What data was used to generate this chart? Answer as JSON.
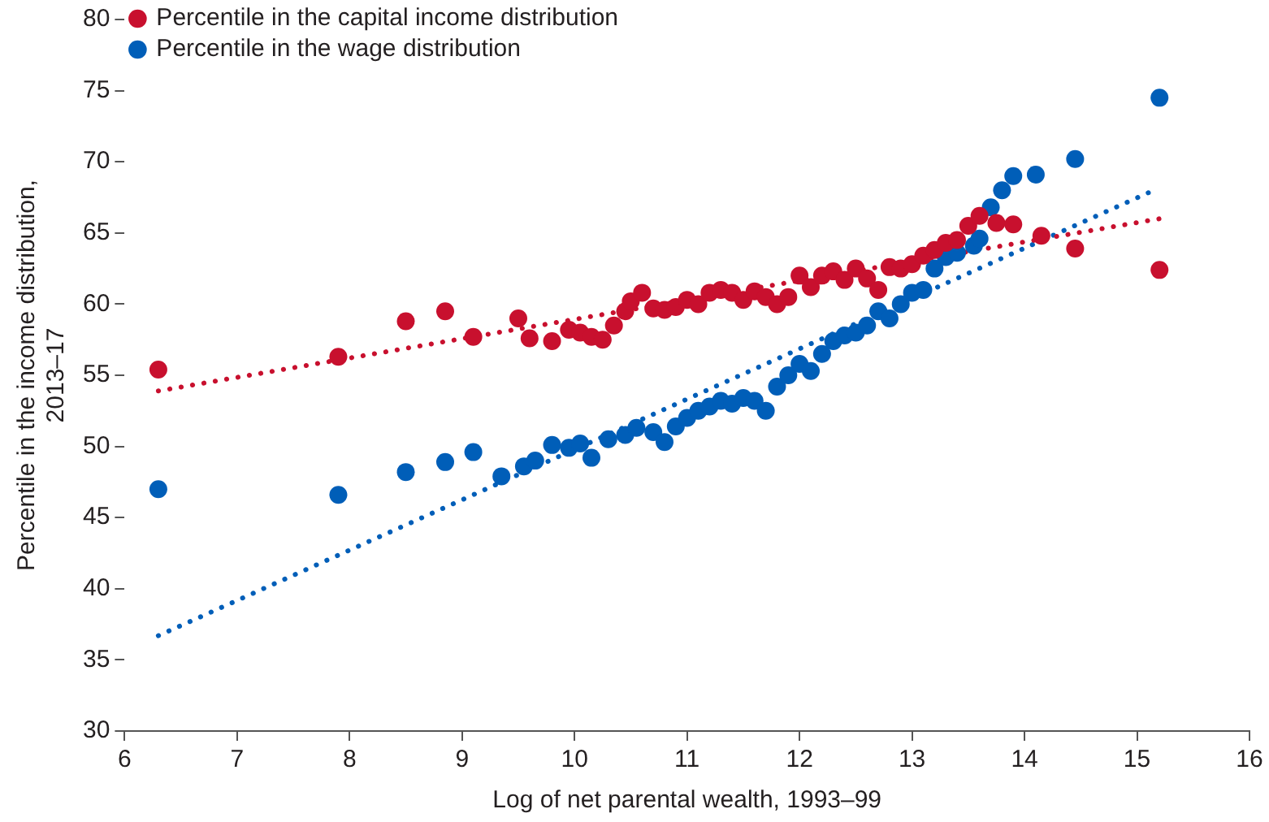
{
  "chart_data": {
    "type": "scatter",
    "xlabel": "Log of net parental wealth, 1993–99",
    "ylabel": "Percentile in the income distribution,\n2013–17",
    "xlim": [
      6,
      16
    ],
    "xticks": [
      6,
      7,
      8,
      9,
      10,
      11,
      12,
      13,
      14,
      15,
      16
    ],
    "ylim": [
      30,
      80
    ],
    "yticks": [
      30,
      35,
      40,
      45,
      50,
      55,
      60,
      65,
      70,
      75,
      80
    ],
    "grid": false,
    "legend": "top left",
    "marker": "circle",
    "series": [
      {
        "name": "Percentile in the capital income distribution",
        "color": "#c8102e",
        "x": [
          6.3,
          7.9,
          8.5,
          8.85,
          9.1,
          9.5,
          9.6,
          9.8,
          9.95,
          10.05,
          10.15,
          10.25,
          10.35,
          10.45,
          10.5,
          10.6,
          10.7,
          10.8,
          10.9,
          11.0,
          11.1,
          11.2,
          11.3,
          11.4,
          11.5,
          11.6,
          11.7,
          11.8,
          11.9,
          12.0,
          12.1,
          12.2,
          12.3,
          12.4,
          12.5,
          12.6,
          12.7,
          12.8,
          12.9,
          13.0,
          13.1,
          13.2,
          13.3,
          13.4,
          13.5,
          13.6,
          13.75,
          13.9,
          14.15,
          14.45,
          15.2
        ],
        "values": [
          55.4,
          56.3,
          58.8,
          59.5,
          57.7,
          59.0,
          57.6,
          57.4,
          58.2,
          58.0,
          57.7,
          57.5,
          58.5,
          59.5,
          60.2,
          60.8,
          59.7,
          59.6,
          59.8,
          60.3,
          60.0,
          60.8,
          61.0,
          60.8,
          60.3,
          60.9,
          60.5,
          60.0,
          60.5,
          62.0,
          61.2,
          62.0,
          62.3,
          61.7,
          62.5,
          61.8,
          61.0,
          62.6,
          62.5,
          62.8,
          63.4,
          63.8,
          64.3,
          64.5,
          65.5,
          66.2,
          65.7,
          65.6,
          64.8,
          63.9,
          62.4
        ]
      },
      {
        "name": "Percentile in the wage distribution",
        "color": "#005eb8",
        "x": [
          6.3,
          7.9,
          8.5,
          8.85,
          9.1,
          9.35,
          9.55,
          9.65,
          9.8,
          9.95,
          10.05,
          10.15,
          10.3,
          10.45,
          10.55,
          10.7,
          10.8,
          10.9,
          11.0,
          11.1,
          11.2,
          11.3,
          11.4,
          11.5,
          11.6,
          11.7,
          11.8,
          11.9,
          12.0,
          12.1,
          12.2,
          12.3,
          12.4,
          12.5,
          12.6,
          12.7,
          12.8,
          12.9,
          13.0,
          13.1,
          13.2,
          13.3,
          13.4,
          13.55,
          13.6,
          13.7,
          13.8,
          13.9,
          14.1,
          14.45,
          15.2
        ],
        "values": [
          47.0,
          46.6,
          48.2,
          48.9,
          49.6,
          47.9,
          48.6,
          49.0,
          50.1,
          49.9,
          50.2,
          49.2,
          50.5,
          50.8,
          51.3,
          51.0,
          50.3,
          51.4,
          52.0,
          52.5,
          52.8,
          53.2,
          53.0,
          53.4,
          53.2,
          52.5,
          54.2,
          55.0,
          55.8,
          55.3,
          56.5,
          57.4,
          57.8,
          58.0,
          58.5,
          59.5,
          59.0,
          60.0,
          60.8,
          61.0,
          62.5,
          63.3,
          63.6,
          64.1,
          64.6,
          66.8,
          68.0,
          69.0,
          69.1,
          70.2,
          74.5
        ]
      },
      {
        "type": "line",
        "line_style": "dotted",
        "marker": "none",
        "color": "#c8102e",
        "x": [
          6.3,
          15.2
        ],
        "values": [
          53.9,
          66.0
        ]
      },
      {
        "type": "line",
        "line_style": "dotted",
        "marker": "none",
        "color": "#005eb8",
        "x": [
          6.3,
          15.15
        ],
        "values": [
          36.7,
          68.0
        ]
      }
    ]
  }
}
